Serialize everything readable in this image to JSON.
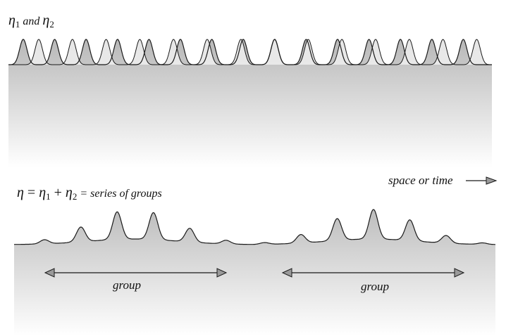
{
  "top_label": {
    "eta": "η",
    "sub1": "1",
    "joiner": " and ",
    "sub2": "2"
  },
  "bottom_label": {
    "eta": "η",
    "equals": " = ",
    "plus": " + ",
    "sub1": "1",
    "sub2": "2",
    "suffix": " = series of groups"
  },
  "axis_label": "space or time",
  "group_labels": [
    "group",
    "group"
  ],
  "colors": {
    "wave_stroke": "#1a1a1a",
    "fill_top": "#bdbdbd",
    "fill_bottom": "#ffffff",
    "light_wave": "#eeeeee",
    "arrow_fill": "#9a9a9a"
  }
}
